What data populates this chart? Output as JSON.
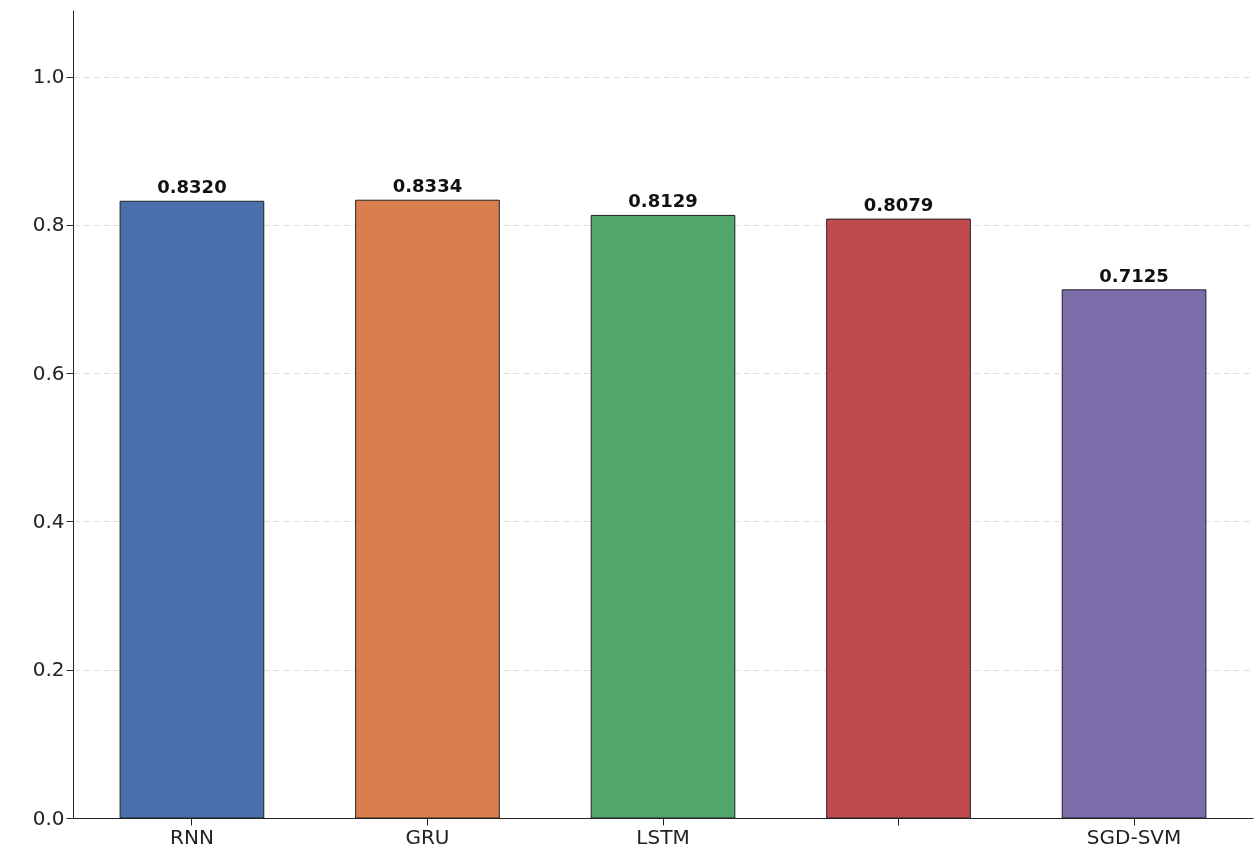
{
  "chart_data": {
    "type": "bar",
    "categories": [
      "RNN",
      "GRU",
      "LSTM",
      null,
      "SGD-SVM"
    ],
    "values": [
      0.832,
      0.8334,
      0.8129,
      0.8079,
      0.7125
    ],
    "colors": [
      "#4a6fab",
      "#d97f4d",
      "#52a56b",
      "#c04b4f",
      "#7d6dab"
    ],
    "value_labels": [
      "0.8320",
      "0.8334",
      "0.8129",
      "0.8079",
      "0.7125"
    ],
    "ylim": [
      0,
      1.09
    ],
    "yticks": [
      {
        "value": 0,
        "label": "0.0"
      },
      {
        "value": 0.2,
        "label": "0.2"
      },
      {
        "value": 0.4,
        "label": "0.4"
      },
      {
        "value": 0.6,
        "label": "0.6"
      },
      {
        "value": 0.8,
        "label": "0.8"
      },
      {
        "value": 1.0,
        "label": "1.0"
      }
    ],
    "grid": "y"
  }
}
